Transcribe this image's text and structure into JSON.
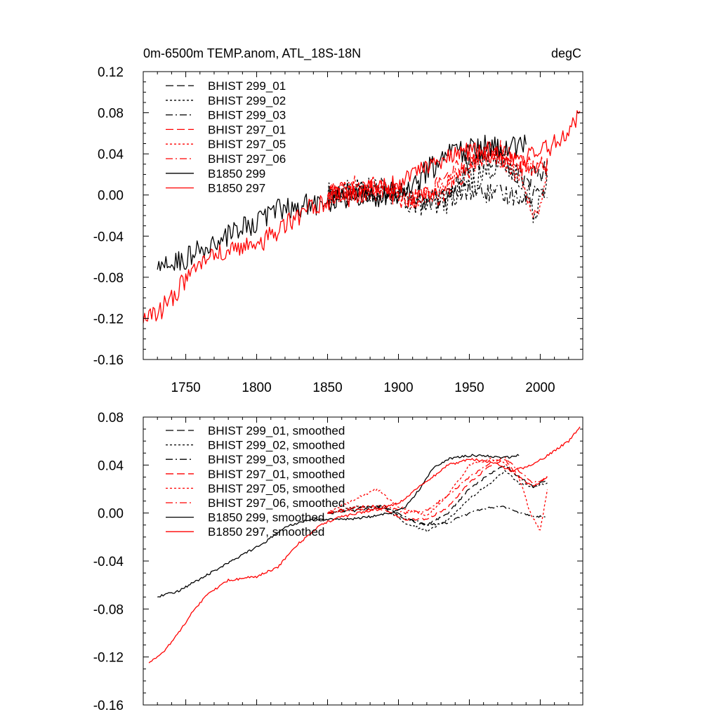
{
  "chart_data": [
    {
      "type": "line",
      "title_left": "0m-6500m TEMP.anom, ATL_18S-18N",
      "title_right": "degC",
      "xlim": [
        1720,
        2030
      ],
      "ylim": [
        -0.16,
        0.12
      ],
      "xticks": [
        1750,
        1800,
        1850,
        1900,
        1950,
        2000
      ],
      "xtick_labels": [
        "1750",
        "1800",
        "1850",
        "1900",
        "1950",
        "2000"
      ],
      "yticks": [
        0.12,
        0.08,
        0.04,
        0.0,
        -0.04,
        -0.08,
        -0.12,
        -0.16
      ],
      "ytick_labels": [
        "0.12",
        "0.08",
        "0.04",
        "0.00",
        "-0.04",
        "-0.08",
        "-0.12",
        "-0.16"
      ],
      "legend_position": "top-left",
      "series": [
        {
          "name": "BHIST 299_01",
          "color": "#000000",
          "dash": "dash",
          "noise": 0.01,
          "x": [
            1850,
            1870,
            1890,
            1910,
            1930,
            1950,
            1970,
            1990,
            2005
          ],
          "y": [
            0.0,
            0.005,
            0.005,
            0.0,
            -0.005,
            0.03,
            0.035,
            0.015,
            0.025
          ]
        },
        {
          "name": "BHIST 299_02",
          "color": "#000000",
          "dash": "dot",
          "noise": 0.012,
          "x": [
            1850,
            1870,
            1890,
            1910,
            1930,
            1950,
            1970,
            1985,
            1995,
            2005
          ],
          "y": [
            0.0,
            0.005,
            0.005,
            -0.008,
            -0.012,
            0.015,
            0.03,
            0.02,
            -0.02,
            0.02
          ]
        },
        {
          "name": "BHIST 299_03",
          "color": "#000000",
          "dash": "dashdot",
          "noise": 0.01,
          "x": [
            1850,
            1870,
            1890,
            1910,
            1930,
            1950,
            1970,
            1990,
            2005
          ],
          "y": [
            0.0,
            0.0,
            0.005,
            -0.005,
            -0.005,
            0.005,
            0.0,
            0.0,
            0.005
          ]
        },
        {
          "name": "BHIST 297_01",
          "color": "#ff0000",
          "dash": "dash",
          "noise": 0.01,
          "x": [
            1850,
            1870,
            1890,
            1910,
            1930,
            1950,
            1970,
            1990,
            2005
          ],
          "y": [
            0.0,
            0.005,
            0.0,
            -0.005,
            0.01,
            0.035,
            0.045,
            0.025,
            0.03
          ]
        },
        {
          "name": "BHIST 297_05",
          "color": "#ff0000",
          "dash": "dot",
          "noise": 0.01,
          "x": [
            1850,
            1870,
            1890,
            1910,
            1930,
            1950,
            1965,
            1985,
            1998,
            2005
          ],
          "y": [
            0.0,
            0.01,
            0.01,
            -0.005,
            0.005,
            0.035,
            0.045,
            0.02,
            -0.025,
            0.03
          ]
        },
        {
          "name": "BHIST 297_06",
          "color": "#ff0000",
          "dash": "dashdot",
          "noise": 0.01,
          "x": [
            1850,
            1870,
            1890,
            1910,
            1930,
            1950,
            1970,
            1990,
            2005
          ],
          "y": [
            0.0,
            0.005,
            0.005,
            -0.005,
            0.0,
            0.025,
            0.04,
            0.03,
            0.03
          ]
        },
        {
          "name": "B1850 299",
          "color": "#000000",
          "dash": "solid",
          "noise": 0.012,
          "x": [
            1730,
            1750,
            1770,
            1790,
            1810,
            1830,
            1850,
            1870,
            1890,
            1910,
            1930,
            1950,
            1970,
            1990
          ],
          "y": [
            -0.072,
            -0.062,
            -0.048,
            -0.032,
            -0.018,
            -0.01,
            -0.006,
            -0.002,
            0.0,
            0.01,
            0.035,
            0.045,
            0.048,
            0.048
          ]
        },
        {
          "name": "B1850 297",
          "color": "#ff0000",
          "dash": "solid",
          "noise": 0.01,
          "x": [
            1720,
            1730,
            1740,
            1750,
            1760,
            1780,
            1800,
            1820,
            1840,
            1860,
            1880,
            1900,
            1920,
            1940,
            1960,
            1980,
            2000,
            2015,
            2028
          ],
          "y": [
            -0.125,
            -0.115,
            -0.1,
            -0.082,
            -0.066,
            -0.055,
            -0.05,
            -0.03,
            -0.01,
            -0.005,
            0.005,
            0.01,
            0.03,
            0.04,
            0.045,
            0.03,
            0.04,
            0.055,
            0.078
          ]
        }
      ]
    },
    {
      "type": "line",
      "xlim": [
        1720,
        2030
      ],
      "ylim": [
        -0.16,
        0.08
      ],
      "xticks": [
        1750,
        1800,
        1850,
        1900,
        1950,
        2000
      ],
      "yticks": [
        0.08,
        0.04,
        0.0,
        -0.04,
        -0.08,
        -0.12,
        -0.16
      ],
      "ytick_labels": [
        "0.08",
        "0.04",
        "0.00",
        "-0.04",
        "-0.08",
        "-0.12",
        "-0.16"
      ],
      "legend_position": "top-left",
      "series": [
        {
          "name": "BHIST 299_01, smoothed",
          "color": "#000000",
          "dash": "dash",
          "x": [
            1850,
            1870,
            1890,
            1905,
            1920,
            1935,
            1950,
            1965,
            1975,
            1985,
            1995,
            2005
          ],
          "y": [
            0.0,
            0.004,
            0.006,
            -0.005,
            -0.01,
            0.0,
            0.02,
            0.033,
            0.04,
            0.03,
            0.022,
            0.028
          ]
        },
        {
          "name": "BHIST 299_02, smoothed",
          "color": "#000000",
          "dash": "dot",
          "x": [
            1850,
            1870,
            1890,
            1905,
            1920,
            1935,
            1950,
            1965,
            1975,
            1985,
            1995,
            2005
          ],
          "y": [
            0.0,
            0.005,
            0.004,
            -0.008,
            -0.015,
            -0.005,
            0.012,
            0.025,
            0.035,
            0.025,
            0.022,
            0.025
          ]
        },
        {
          "name": "BHIST 299_03, smoothed",
          "color": "#000000",
          "dash": "dashdot",
          "x": [
            1850,
            1870,
            1890,
            1905,
            1920,
            1935,
            1950,
            1965,
            1975,
            1985,
            1995,
            2005
          ],
          "y": [
            0.0,
            0.002,
            0.005,
            -0.003,
            -0.01,
            -0.008,
            0.0,
            0.005,
            0.005,
            0.0,
            -0.003,
            -0.003
          ]
        },
        {
          "name": "BHIST 297_01, smoothed",
          "color": "#ff0000",
          "dash": "dash",
          "x": [
            1850,
            1870,
            1890,
            1905,
            1920,
            1935,
            1950,
            1965,
            1975,
            1985,
            1995,
            2005
          ],
          "y": [
            0.0,
            0.003,
            0.002,
            -0.005,
            -0.005,
            0.005,
            0.025,
            0.04,
            0.045,
            0.03,
            0.022,
            0.03
          ]
        },
        {
          "name": "BHIST 297_05, smoothed",
          "color": "#ff0000",
          "dash": "dot",
          "x": [
            1850,
            1870,
            1885,
            1900,
            1920,
            1935,
            1950,
            1965,
            1975,
            1985,
            1993,
            2000,
            2005
          ],
          "y": [
            0.0,
            0.012,
            0.02,
            0.005,
            -0.002,
            0.015,
            0.04,
            0.045,
            0.042,
            0.03,
            0.0,
            -0.015,
            0.02
          ]
        },
        {
          "name": "BHIST 297_06, smoothed",
          "color": "#ff0000",
          "dash": "dashdot",
          "x": [
            1850,
            1870,
            1890,
            1905,
            1920,
            1935,
            1950,
            1965,
            1975,
            1985,
            1995,
            2005
          ],
          "y": [
            0.0,
            0.005,
            0.006,
            0.0,
            0.002,
            0.015,
            0.03,
            0.042,
            0.046,
            0.035,
            0.025,
            0.03
          ]
        },
        {
          "name": "B1850 299, smoothed",
          "color": "#000000",
          "dash": "solid",
          "x": [
            1730,
            1745,
            1760,
            1775,
            1790,
            1805,
            1820,
            1835,
            1850,
            1865,
            1880,
            1895,
            1905,
            1915,
            1925,
            1935,
            1950,
            1960,
            1975,
            1985
          ],
          "y": [
            -0.07,
            -0.065,
            -0.055,
            -0.045,
            -0.035,
            -0.025,
            -0.012,
            -0.006,
            -0.005,
            -0.005,
            -0.003,
            0.0,
            0.005,
            0.02,
            0.038,
            0.045,
            0.048,
            0.048,
            0.046,
            0.048
          ]
        },
        {
          "name": "B1850 297, smoothed",
          "color": "#ff0000",
          "dash": "solid",
          "x": [
            1724,
            1735,
            1745,
            1755,
            1765,
            1780,
            1800,
            1815,
            1830,
            1845,
            1860,
            1880,
            1900,
            1915,
            1935,
            1950,
            1965,
            1980,
            1995,
            2010,
            2020,
            2028
          ],
          "y": [
            -0.125,
            -0.115,
            -0.1,
            -0.082,
            -0.068,
            -0.056,
            -0.053,
            -0.045,
            -0.025,
            -0.01,
            -0.003,
            0.002,
            0.008,
            0.022,
            0.04,
            0.045,
            0.043,
            0.035,
            0.04,
            0.052,
            0.06,
            0.072
          ]
        }
      ]
    }
  ]
}
